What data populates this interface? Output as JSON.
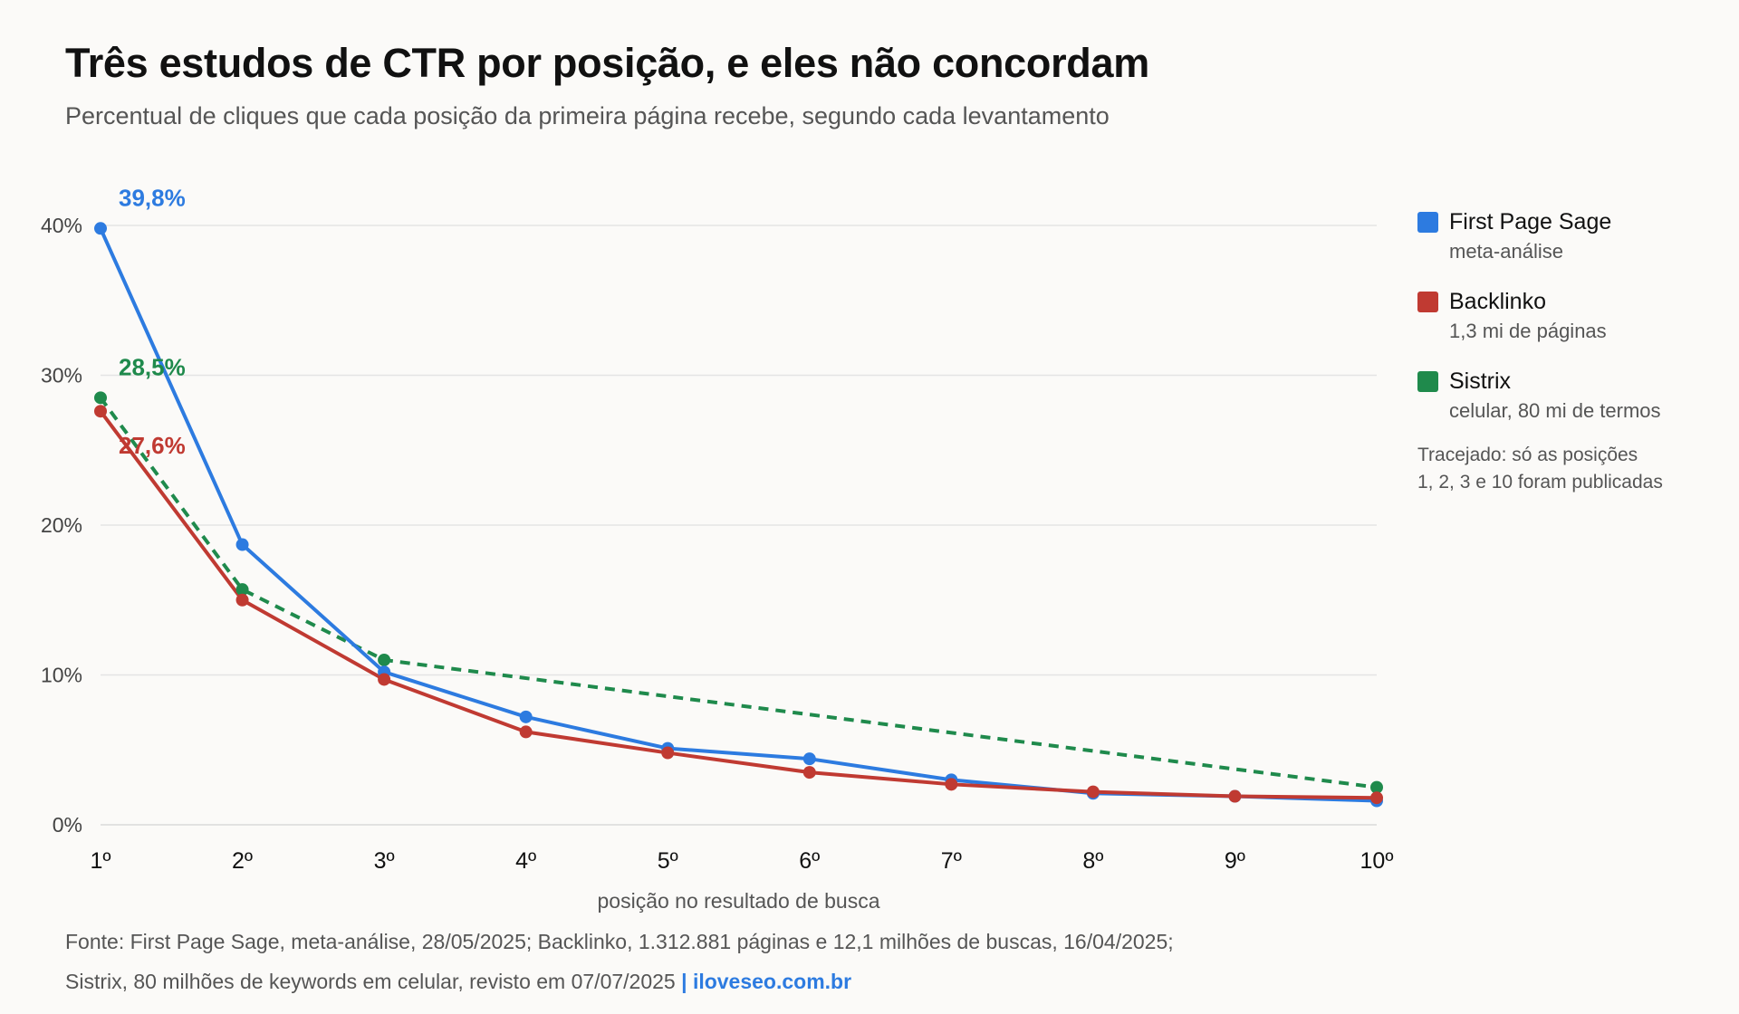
{
  "title": "Três estudos de CTR por posição, e eles não concordam",
  "subtitle": "Percentual de cliques que cada posição da primeira página recebe, segundo cada levantamento",
  "legend": {
    "items": [
      {
        "name": "First Page Sage",
        "desc": "meta-análise",
        "color": "#2d7be0"
      },
      {
        "name": "Backlinko",
        "desc": "1,3 mi de páginas",
        "color": "#c03a32"
      },
      {
        "name": "Sistrix",
        "desc": "celular, 80 mi de termos",
        "color": "#1f8a4c"
      }
    ],
    "note_line1": "Tracejado: só as posições",
    "note_line2": "1, 2, 3 e 10 foram publicadas"
  },
  "source": {
    "line1": "Fonte: First Page Sage, meta-análise, 28/05/2025; Backlinko, 1.312.881 páginas e 12,1 milhões de buscas, 16/04/2025;",
    "line2": "Sistrix, 80 milhões de keywords em celular, revisto em 07/07/2025",
    "separator": "|",
    "site": "iloveseo.com.br"
  },
  "chart_data": {
    "type": "line",
    "xlabel": "posição no resultado de busca",
    "ylabel": "",
    "categories": [
      "1º",
      "2º",
      "3º",
      "4º",
      "5º",
      "6º",
      "7º",
      "8º",
      "9º",
      "10º"
    ],
    "y_ticks": [
      "0%",
      "10%",
      "20%",
      "30%",
      "40%"
    ],
    "ylim": [
      0,
      40
    ],
    "grid": true,
    "legend_position": "right",
    "series": [
      {
        "name": "First Page Sage",
        "color": "#2d7be0",
        "dashed": false,
        "x": [
          1,
          2,
          3,
          4,
          5,
          6,
          7,
          8,
          9,
          10
        ],
        "values": [
          39.8,
          18.7,
          10.2,
          7.2,
          5.1,
          4.4,
          3.0,
          2.1,
          1.9,
          1.6
        ],
        "first_label": "39,8%"
      },
      {
        "name": "Backlinko",
        "color": "#c03a32",
        "dashed": false,
        "x": [
          1,
          2,
          3,
          4,
          5,
          6,
          7,
          8,
          9,
          10
        ],
        "values": [
          27.6,
          15.0,
          9.7,
          6.2,
          4.8,
          3.5,
          2.7,
          2.2,
          1.9,
          1.8
        ],
        "first_label": "27,6%"
      },
      {
        "name": "Sistrix",
        "color": "#1f8a4c",
        "dashed": true,
        "x": [
          1,
          2,
          3,
          10
        ],
        "values": [
          28.5,
          15.7,
          11.0,
          2.5
        ],
        "first_label": "28,5%"
      }
    ]
  }
}
